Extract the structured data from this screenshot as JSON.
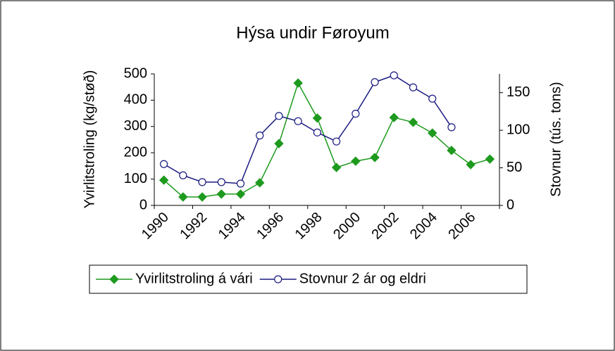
{
  "chart_data": {
    "type": "line",
    "title": "Hýsa undir Føroyum",
    "y_label": "Yvirlitstroling (kg/støð)",
    "y2_label": "Stovnur (tús. tons)",
    "categories": [
      "1990",
      null,
      "1992",
      null,
      "1994",
      null,
      "1996",
      null,
      "1998",
      null,
      "2000",
      null,
      "2002",
      null,
      "2004",
      null,
      "2006",
      null
    ],
    "series": [
      {
        "name": "Yvirlitstroling á vári",
        "color": "#1e9a1e",
        "marker": "diamond",
        "values": [
          96,
          32,
          32,
          43,
          43,
          86,
          235,
          465,
          332,
          144,
          168,
          182,
          334,
          316,
          275,
          209,
          155,
          176
        ]
      },
      {
        "name": "Stovnur 2 ár og eldri",
        "color": "#1a1a80",
        "marker": "circle",
        "axis": "y2",
        "values": [
          55,
          40,
          31,
          31,
          29,
          93,
          119,
          112,
          97,
          85,
          122,
          164,
          173,
          157,
          142,
          104,
          null,
          null
        ]
      }
    ],
    "ylim": [
      0,
      500
    ],
    "yticks": [
      0,
      100,
      200,
      300,
      400,
      500
    ],
    "y2lim": [
      0,
      175
    ],
    "y2ticks": [
      0,
      50,
      100,
      150
    ],
    "legend": "bottom"
  }
}
